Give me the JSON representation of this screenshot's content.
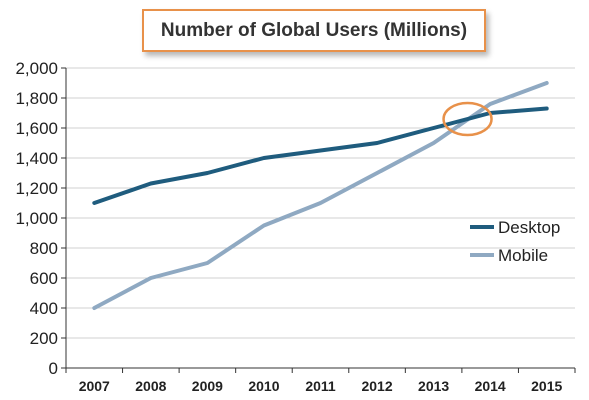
{
  "colors": {
    "desktop": "#1f5c7e",
    "mobile": "#8fa9c2",
    "highlight": "#e8914a",
    "grid": "#d0d0d0",
    "axis": "#333333"
  },
  "chart_data": {
    "type": "line",
    "title": "Number of Global Users (Millions)",
    "xlabel": "",
    "ylabel": "",
    "categories": [
      "2007",
      "2008",
      "2009",
      "2010",
      "2011",
      "2012",
      "2013",
      "2014",
      "2015"
    ],
    "ylim": [
      0,
      2000
    ],
    "yticks": [
      0,
      200,
      400,
      600,
      800,
      1000,
      1200,
      1400,
      1600,
      1800,
      2000
    ],
    "ytick_labels": [
      "0",
      "200",
      "400",
      "600",
      "800",
      "1,000",
      "1,200",
      "1,400",
      "1,600",
      "1,800",
      "2,000"
    ],
    "grid": "horizontal",
    "legend_position": "right",
    "series": [
      {
        "name": "Desktop",
        "values": [
          1100,
          1230,
          1300,
          1400,
          1450,
          1500,
          1600,
          1700,
          1730
        ]
      },
      {
        "name": "Mobile",
        "values": [
          400,
          600,
          700,
          950,
          1100,
          1300,
          1500,
          1760,
          1900
        ]
      }
    ],
    "annotation": {
      "type": "circle",
      "x_category": "2014",
      "x_offset": -0.4,
      "y": 1660
    }
  }
}
